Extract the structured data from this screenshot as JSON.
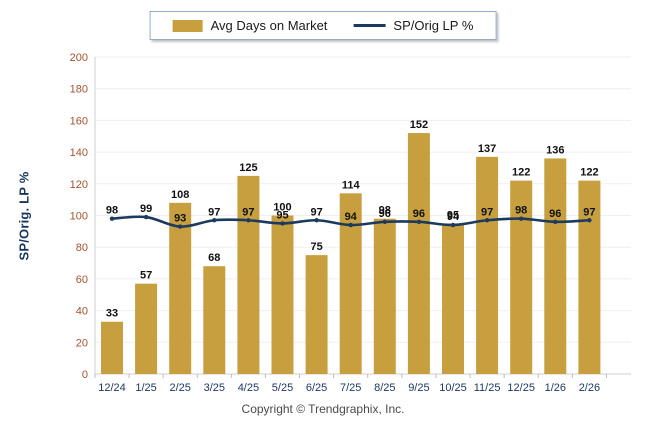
{
  "legend": {
    "items": [
      {
        "label": "Avg Days on Market",
        "swatch": "bar-swatch"
      },
      {
        "label": "SP/Orig LP %",
        "swatch": "line-swatch"
      }
    ]
  },
  "y_axis_title": "SP/Orig. LP %",
  "copyright": "Copyright © Trendgraphix, Inc.",
  "colors": {
    "bar": "#C79F3F",
    "line": "#1C3A5E",
    "y_tick_label": "#A5522F",
    "x_tick_label": "#1F3864",
    "data_label": "#111111",
    "grid": "#EFEFEF",
    "axis": "#CFCFCF",
    "tick_mark": "#B5BEC7",
    "legend_border": "#93AECB"
  },
  "chart_data": {
    "type": "bar+line",
    "title": "",
    "xlabel": "",
    "ylabel": "SP/Orig. LP %",
    "categories": [
      "12/24",
      "1/25",
      "2/25",
      "3/25",
      "4/25",
      "5/25",
      "6/25",
      "7/25",
      "8/25",
      "9/25",
      "10/25",
      "11/25",
      "12/25",
      "1/26",
      "2/26"
    ],
    "series": [
      {
        "name": "Avg Days on Market",
        "type": "bar",
        "values": [
          33,
          57,
          108,
          68,
          125,
          100,
          75,
          114,
          98,
          152,
          95,
          137,
          122,
          136,
          122
        ]
      },
      {
        "name": "SP/Orig LP %",
        "type": "line",
        "values": [
          98,
          99,
          93,
          97,
          97,
          95,
          97,
          94,
          96,
          96,
          94,
          97,
          98,
          96,
          97
        ]
      }
    ],
    "ylim": [
      0,
      200
    ],
    "ytick_step": 20,
    "grid": true,
    "legend_position": "top-center"
  }
}
